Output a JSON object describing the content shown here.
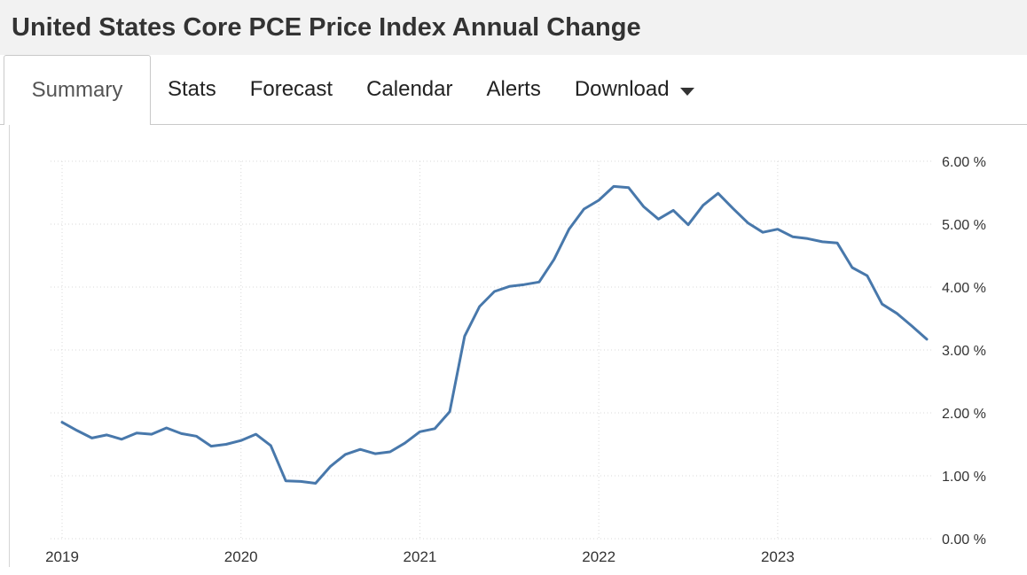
{
  "header": {
    "title": "United States Core PCE Price Index Annual Change"
  },
  "tabs": {
    "items": [
      {
        "label": "Summary",
        "active": true,
        "has_dropdown": false
      },
      {
        "label": "Stats",
        "active": false,
        "has_dropdown": false
      },
      {
        "label": "Forecast",
        "active": false,
        "has_dropdown": false
      },
      {
        "label": "Calendar",
        "active": false,
        "has_dropdown": false
      },
      {
        "label": "Alerts",
        "active": false,
        "has_dropdown": false
      },
      {
        "label": "Download",
        "active": false,
        "has_dropdown": true
      }
    ]
  },
  "colors": {
    "line": "#4878ab",
    "grid": "#d9d9d9",
    "axis_text": "#333333",
    "titlebar_bg": "#f2f2f2",
    "tab_border": "#c9c9c9"
  },
  "chart_data": {
    "type": "line",
    "title": "United States Core PCE Price Index Annual Change",
    "xlabel": "",
    "ylabel": "",
    "x_unit": "month",
    "x": [
      "2019-01",
      "2019-02",
      "2019-03",
      "2019-04",
      "2019-05",
      "2019-06",
      "2019-07",
      "2019-08",
      "2019-09",
      "2019-10",
      "2019-11",
      "2019-12",
      "2020-01",
      "2020-02",
      "2020-03",
      "2020-04",
      "2020-05",
      "2020-06",
      "2020-07",
      "2020-08",
      "2020-09",
      "2020-10",
      "2020-11",
      "2020-12",
      "2021-01",
      "2021-02",
      "2021-03",
      "2021-04",
      "2021-05",
      "2021-06",
      "2021-07",
      "2021-08",
      "2021-09",
      "2021-10",
      "2021-11",
      "2021-12",
      "2022-01",
      "2022-02",
      "2022-03",
      "2022-04",
      "2022-05",
      "2022-06",
      "2022-07",
      "2022-08",
      "2022-09",
      "2022-10",
      "2022-11",
      "2022-12",
      "2023-01",
      "2023-02",
      "2023-03",
      "2023-04",
      "2023-05",
      "2023-06",
      "2023-07",
      "2023-08",
      "2023-09",
      "2023-10",
      "2023-11"
    ],
    "series": [
      {
        "name": "Core PCE Price Index Annual Change (%)",
        "values": [
          1.85,
          1.72,
          1.6,
          1.65,
          1.58,
          1.68,
          1.66,
          1.76,
          1.67,
          1.63,
          1.47,
          1.5,
          1.56,
          1.66,
          1.48,
          0.92,
          0.91,
          0.88,
          1.15,
          1.34,
          1.42,
          1.35,
          1.38,
          1.52,
          1.7,
          1.75,
          2.02,
          3.22,
          3.69,
          3.93,
          4.01,
          4.04,
          4.08,
          4.44,
          4.92,
          5.24,
          5.38,
          5.6,
          5.58,
          5.28,
          5.08,
          5.22,
          4.99,
          5.3,
          5.49,
          5.25,
          5.02,
          4.87,
          4.92,
          4.8,
          4.77,
          4.72,
          4.7,
          4.31,
          4.18,
          3.73,
          3.58,
          3.38,
          3.17
        ]
      }
    ],
    "x_tick_labels": [
      "2019",
      "2020",
      "2021",
      "2022",
      "2023"
    ],
    "x_tick_every_n_points": 12,
    "y_ticks": [
      0,
      1,
      2,
      3,
      4,
      5,
      6
    ],
    "y_tick_labels": [
      "0.00 %",
      "1.00 %",
      "2.00 %",
      "3.00 %",
      "4.00 %",
      "5.00 %",
      "6.00 %"
    ],
    "ylim": [
      0,
      6
    ],
    "grid": "dotted",
    "legend": "none",
    "y_axis_side": "right",
    "line_color": "#4878ab"
  }
}
